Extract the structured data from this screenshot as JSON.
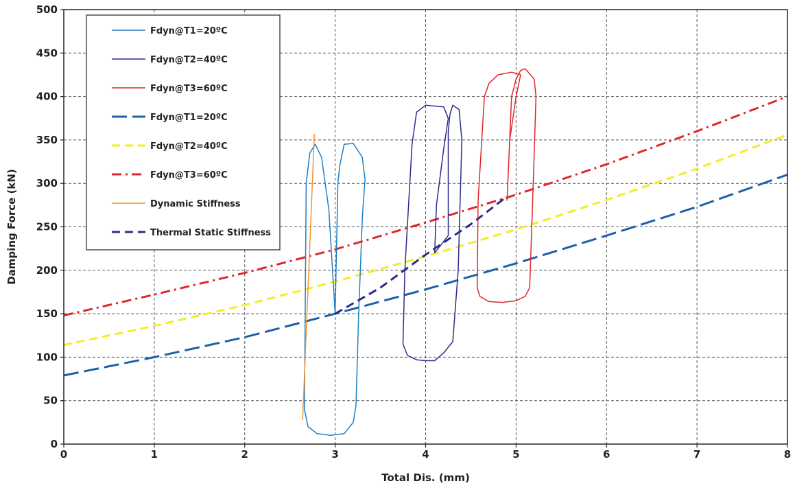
{
  "chart_data": {
    "type": "line",
    "title": "",
    "xlabel": "Total Dis. (mm)",
    "ylabel": "Damping Force (kN)",
    "xlim": [
      0,
      8
    ],
    "ylim": [
      0,
      500
    ],
    "xticks": [
      "0",
      "1",
      "2",
      "3",
      "4",
      "5",
      "6",
      "7",
      "8"
    ],
    "yticks": [
      "0",
      "50",
      "100",
      "150",
      "200",
      "250",
      "300",
      "350",
      "400",
      "450",
      "500"
    ],
    "grid": true,
    "legend_position": "top-left",
    "series": [
      {
        "name": "Fdyn@T1=20ºC",
        "color": "#1f7fc4",
        "dash": "solid",
        "x": [
          3.0,
          2.93,
          2.85,
          2.78,
          2.72,
          2.68,
          2.66,
          2.7,
          2.8,
          2.95,
          3.1,
          3.2,
          3.23,
          3.26,
          3.3,
          3.33,
          3.3,
          3.2,
          3.1,
          3.05,
          3.03,
          3.0
        ],
        "y": [
          150,
          270,
          330,
          345,
          335,
          300,
          40,
          20,
          12,
          10,
          12,
          25,
          45,
          150,
          260,
          305,
          330,
          346,
          345,
          320,
          300,
          150
        ]
      },
      {
        "name": "Fdyn@T2=40ºC",
        "color": "#2c2c8c",
        "dash": "solid",
        "x": [
          4.1,
          4.12,
          4.2,
          4.25,
          4.2,
          4.0,
          3.9,
          3.85,
          3.77,
          3.75,
          3.8,
          3.9,
          4.0,
          4.1,
          4.2,
          4.3,
          4.36,
          4.4,
          4.37,
          4.3,
          4.27,
          4.25,
          4.25,
          4.1
        ],
        "y": [
          220,
          275,
          340,
          375,
          388,
          390,
          382,
          345,
          200,
          115,
          102,
          97,
          96,
          96,
          105,
          118,
          200,
          350,
          385,
          390,
          380,
          360,
          240,
          220
        ]
      },
      {
        "name": "Fdyn@T3=60ºC",
        "color": "#e0262a",
        "dash": "solid",
        "x": [
          4.9,
          4.93,
          5.0,
          5.05,
          4.95,
          4.8,
          4.7,
          4.65,
          4.58,
          4.57,
          4.6,
          4.7,
          4.85,
          5.0,
          5.1,
          5.15,
          5.19,
          5.22,
          5.2,
          5.1,
          5.05,
          5.0,
          4.95,
          4.9
        ],
        "y": [
          280,
          350,
          400,
          425,
          428,
          425,
          415,
          400,
          280,
          180,
          170,
          164,
          163,
          165,
          170,
          180,
          300,
          400,
          420,
          432,
          430,
          420,
          400,
          280
        ]
      },
      {
        "name": "Fdyn@T1=20ºC",
        "color": "#1f5faa",
        "dash": "long-dash",
        "x": [
          0,
          1,
          2,
          3,
          4,
          5,
          6,
          7,
          8
        ],
        "y": [
          79,
          100,
          123,
          150,
          178,
          208,
          240,
          273,
          310
        ]
      },
      {
        "name": "Fdyn@T2=40ºC",
        "color": "#f2ee20",
        "dash": "dash",
        "x": [
          0,
          1,
          2,
          3,
          4,
          5,
          6,
          7,
          8
        ],
        "y": [
          114,
          136,
          160,
          187,
          216,
          247,
          281,
          317,
          356
        ]
      },
      {
        "name": "Fdyn@T3=60ºC",
        "color": "#e0262a",
        "dash": "dash-dot",
        "x": [
          0,
          1,
          2,
          3,
          4,
          5,
          6,
          7,
          8
        ],
        "y": [
          148,
          172,
          197,
          224,
          255,
          287,
          322,
          360,
          400
        ]
      },
      {
        "name": "Dynamic Stiffness",
        "color": "#f0962a",
        "dash": "solid",
        "x": [
          2.64,
          2.77
        ],
        "y": [
          28,
          357
        ]
      },
      {
        "name": "Thermal Static Stiffness",
        "color": "#2c2c8c",
        "dash": "dash",
        "x": [
          3.0,
          3.5,
          4.0,
          4.5,
          4.9
        ],
        "y": [
          150,
          180,
          218,
          253,
          285
        ]
      }
    ]
  }
}
